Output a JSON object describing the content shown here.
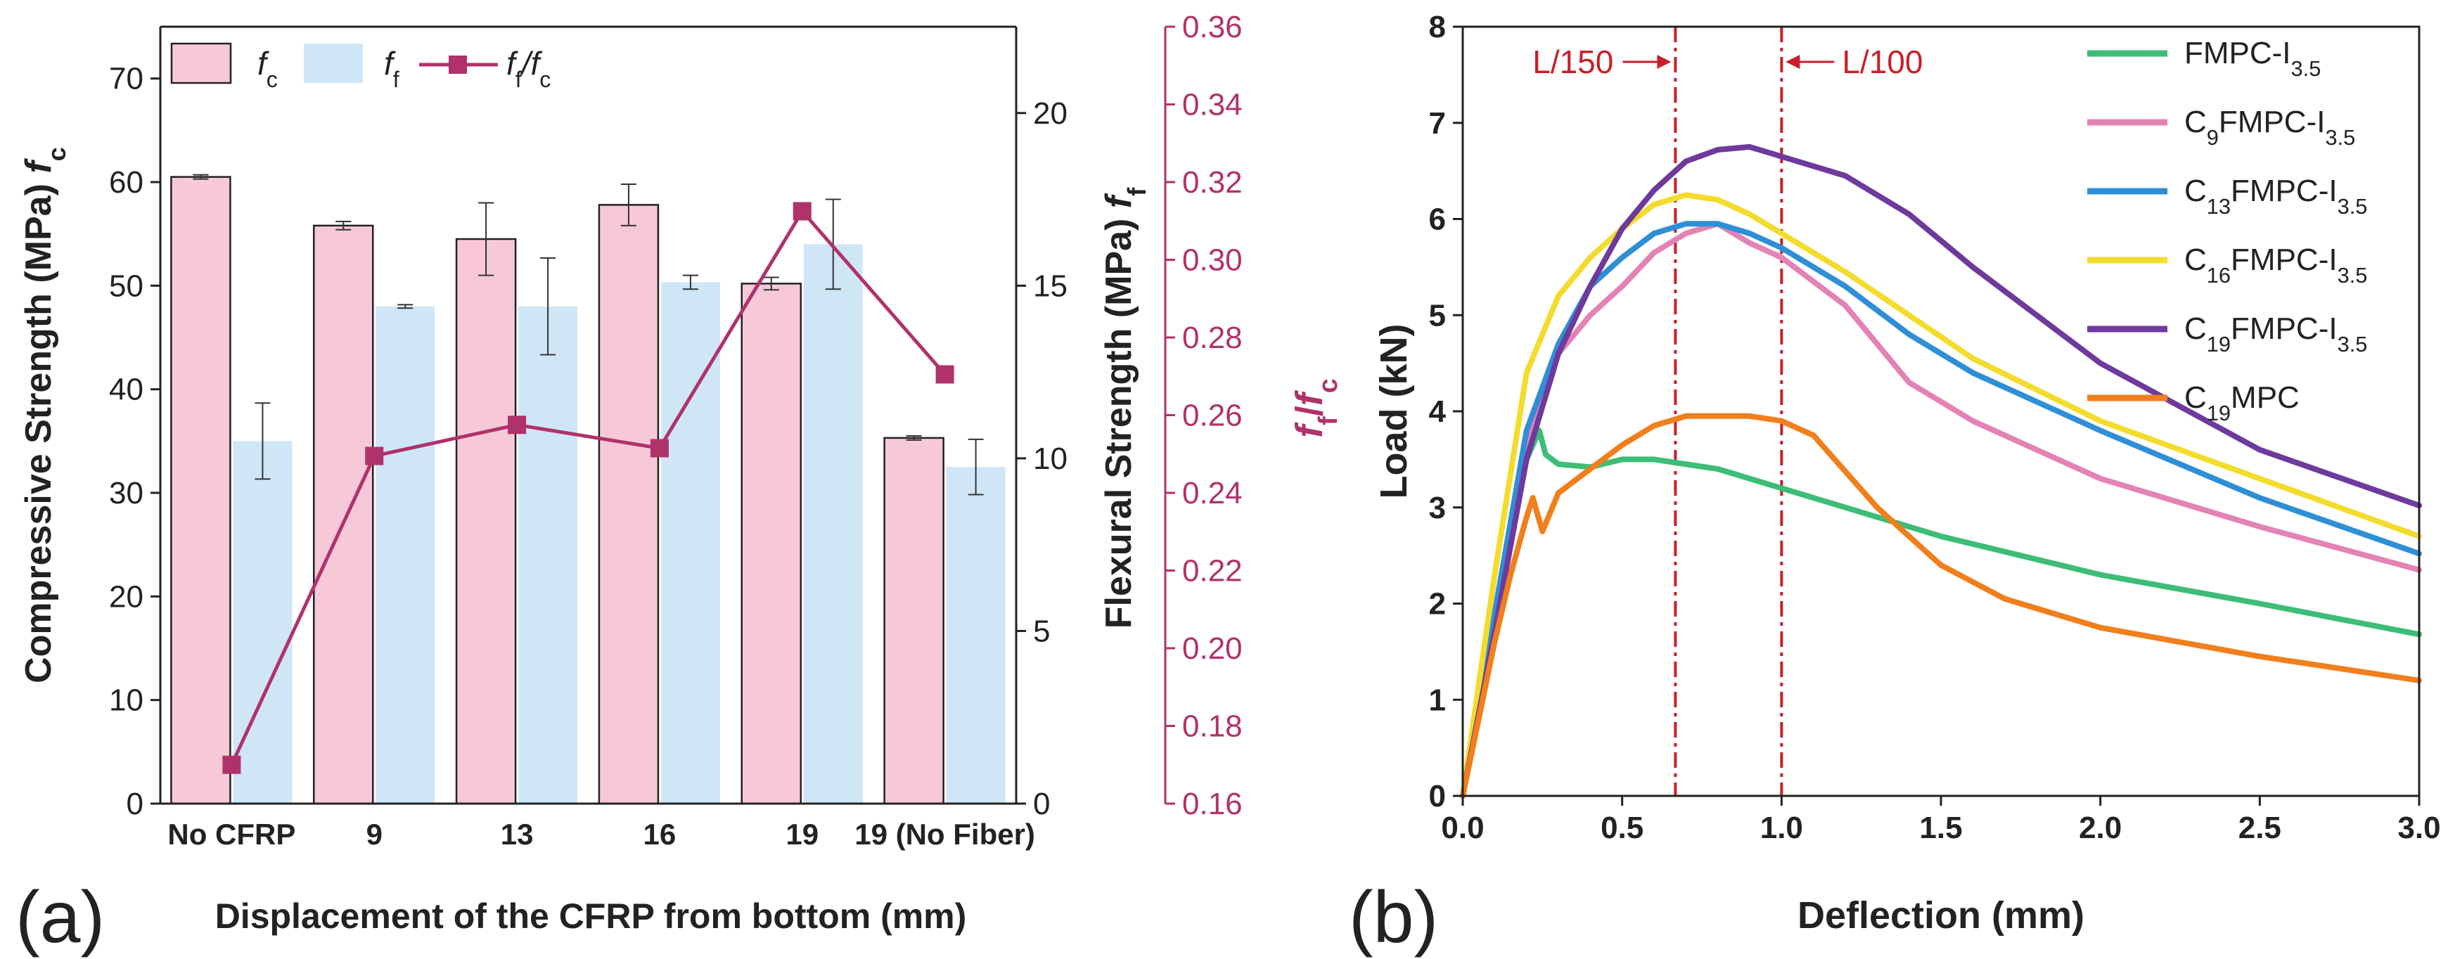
{
  "chart_data": [
    {
      "panel_label": "(a)",
      "type": "bar",
      "xlabel": "Displacement of the CFRP from bottom (mm)",
      "ylabel_left": "Compressive Strength (MPa) f",
      "ylabel_left_sub": "c",
      "ylabel_right": "Flexural Strength (MPa) f",
      "ylabel_right_sub": "f",
      "ylabel_ratio": "f",
      "ylabel_ratio_mid": "f",
      "ylabel_ratio_subs": [
        "f",
        "c"
      ],
      "categories": [
        "No CFRP",
        "9",
        "13",
        "16",
        "19",
        "19 (No Fiber)"
      ],
      "ylim_left": [
        0,
        75
      ],
      "yticks_left": [
        0,
        10,
        20,
        30,
        40,
        50,
        60,
        70
      ],
      "ylim_right": [
        0,
        22.5
      ],
      "yticks_right": [
        0,
        5,
        10,
        15,
        20
      ],
      "ylim_ratio": [
        0.16,
        0.36
      ],
      "yticks_ratio": [
        "0.16",
        "0.18",
        "0.20",
        "0.22",
        "0.24",
        "0.26",
        "0.28",
        "0.30",
        "0.32",
        "0.34",
        "0.36"
      ],
      "series": [
        {
          "name": "f",
          "sub": "c",
          "axis": "left",
          "kind": "bar",
          "color": "#f7c9d8",
          "edge": "#222222",
          "values": [
            60.5,
            55.8,
            54.5,
            57.8,
            50.2,
            35.3
          ],
          "errors": [
            0.2,
            0.4,
            3.5,
            2.0,
            0.6,
            0.2
          ]
        },
        {
          "name": "f",
          "sub": "f",
          "axis": "right",
          "kind": "bar",
          "color": "#cfe6f7",
          "edge": "#cfe6f7",
          "values": [
            10.5,
            14.4,
            14.4,
            15.1,
            16.2,
            9.75
          ],
          "errors": [
            1.1,
            0.05,
            1.4,
            0.2,
            1.3,
            0.8
          ]
        },
        {
          "name": "f",
          "sub": "f",
          "name2": "/f",
          "sub2": "c",
          "axis": "ratio",
          "kind": "line",
          "color": "#b0326a",
          "values": [
            0.17,
            0.2495,
            0.2575,
            0.2515,
            0.3125,
            0.2705
          ]
        }
      ]
    },
    {
      "panel_label": "(b)",
      "type": "line",
      "xlabel": "Deflection (mm)",
      "ylabel": "Load (kN)",
      "xlim": [
        0,
        3.0
      ],
      "ylim": [
        0,
        8
      ],
      "xticks": [
        "0.0",
        "0.5",
        "1.0",
        "1.5",
        "2.0",
        "2.5",
        "3.0"
      ],
      "yticks": [
        "0",
        "1",
        "2",
        "3",
        "4",
        "5",
        "6",
        "7",
        "8"
      ],
      "vlines": [
        {
          "x": 0.667,
          "label": "L/150",
          "color": "#c8202a",
          "style": "dashdot",
          "arrow": "right"
        },
        {
          "x": 1.0,
          "label": "L/100",
          "color": "#c8202a",
          "style": "dashdot",
          "arrow": "left"
        }
      ],
      "series": [
        {
          "name": "FMPC-I",
          "sub": "3.5",
          "prefix_sub": "",
          "color": "#3dbd77",
          "x": [
            0,
            0.05,
            0.1,
            0.15,
            0.2,
            0.24,
            0.26,
            0.3,
            0.4,
            0.5,
            0.6,
            0.8,
            1.0,
            1.25,
            1.5,
            2.0,
            2.5,
            3.0
          ],
          "y": [
            0,
            0.9,
            1.8,
            2.7,
            3.5,
            3.8,
            3.55,
            3.45,
            3.42,
            3.5,
            3.5,
            3.4,
            3.2,
            2.95,
            2.7,
            2.3,
            2.0,
            1.68
          ]
        },
        {
          "name": "C",
          "sub": "9",
          "name2": "FMPC-I",
          "sub2": "3.5",
          "color": "#e383b5",
          "x": [
            0,
            0.1,
            0.2,
            0.3,
            0.4,
            0.5,
            0.6,
            0.7,
            0.8,
            0.9,
            1.0,
            1.2,
            1.4,
            1.6,
            2.0,
            2.5,
            3.0
          ],
          "y": [
            0,
            1.9,
            3.7,
            4.6,
            5.0,
            5.3,
            5.65,
            5.85,
            5.95,
            5.75,
            5.6,
            5.1,
            4.3,
            3.9,
            3.3,
            2.8,
            2.35
          ]
        },
        {
          "name": "C",
          "sub": "13",
          "name2": "FMPC-I",
          "sub2": "3.5",
          "color": "#2f8fd6",
          "x": [
            0,
            0.1,
            0.2,
            0.3,
            0.4,
            0.5,
            0.6,
            0.7,
            0.8,
            0.9,
            1.0,
            1.2,
            1.4,
            1.6,
            2.0,
            2.5,
            3.0
          ],
          "y": [
            0,
            1.9,
            3.8,
            4.7,
            5.3,
            5.6,
            5.85,
            5.95,
            5.95,
            5.85,
            5.7,
            5.3,
            4.8,
            4.4,
            3.8,
            3.1,
            2.52
          ]
        },
        {
          "name": "C",
          "sub": "16",
          "name2": "FMPC-I",
          "sub2": "3.5",
          "color": "#f3dc2b",
          "x": [
            0,
            0.1,
            0.2,
            0.3,
            0.4,
            0.5,
            0.6,
            0.7,
            0.8,
            0.9,
            1.0,
            1.2,
            1.4,
            1.6,
            2.0,
            2.5,
            3.0
          ],
          "y": [
            0,
            2.3,
            4.4,
            5.2,
            5.6,
            5.9,
            6.15,
            6.25,
            6.2,
            6.05,
            5.85,
            5.45,
            5.0,
            4.55,
            3.9,
            3.3,
            2.7
          ]
        },
        {
          "name": "C",
          "sub": "19",
          "name2": "FMPC-I",
          "sub2": "3.5",
          "color": "#6e3a9c",
          "x": [
            0,
            0.1,
            0.2,
            0.3,
            0.4,
            0.5,
            0.6,
            0.7,
            0.8,
            0.9,
            1.0,
            1.2,
            1.4,
            1.6,
            2.0,
            2.5,
            3.0
          ],
          "y": [
            0,
            1.7,
            3.5,
            4.6,
            5.3,
            5.9,
            6.3,
            6.6,
            6.72,
            6.75,
            6.65,
            6.45,
            6.05,
            5.5,
            4.5,
            3.6,
            3.02
          ]
        },
        {
          "name": "C",
          "sub": "19",
          "name2": "MPC",
          "sub2": "",
          "color": "#f07f1c",
          "x": [
            0,
            0.05,
            0.1,
            0.15,
            0.2,
            0.22,
            0.25,
            0.3,
            0.4,
            0.5,
            0.6,
            0.7,
            0.8,
            0.9,
            1.0,
            1.1,
            1.3,
            1.5,
            1.7,
            2.0,
            2.5,
            3.0
          ],
          "y": [
            0,
            0.8,
            1.6,
            2.3,
            2.9,
            3.1,
            2.75,
            3.15,
            3.4,
            3.65,
            3.85,
            3.95,
            3.95,
            3.95,
            3.9,
            3.75,
            3.0,
            2.4,
            2.05,
            1.75,
            1.45,
            1.2
          ]
        }
      ]
    }
  ]
}
